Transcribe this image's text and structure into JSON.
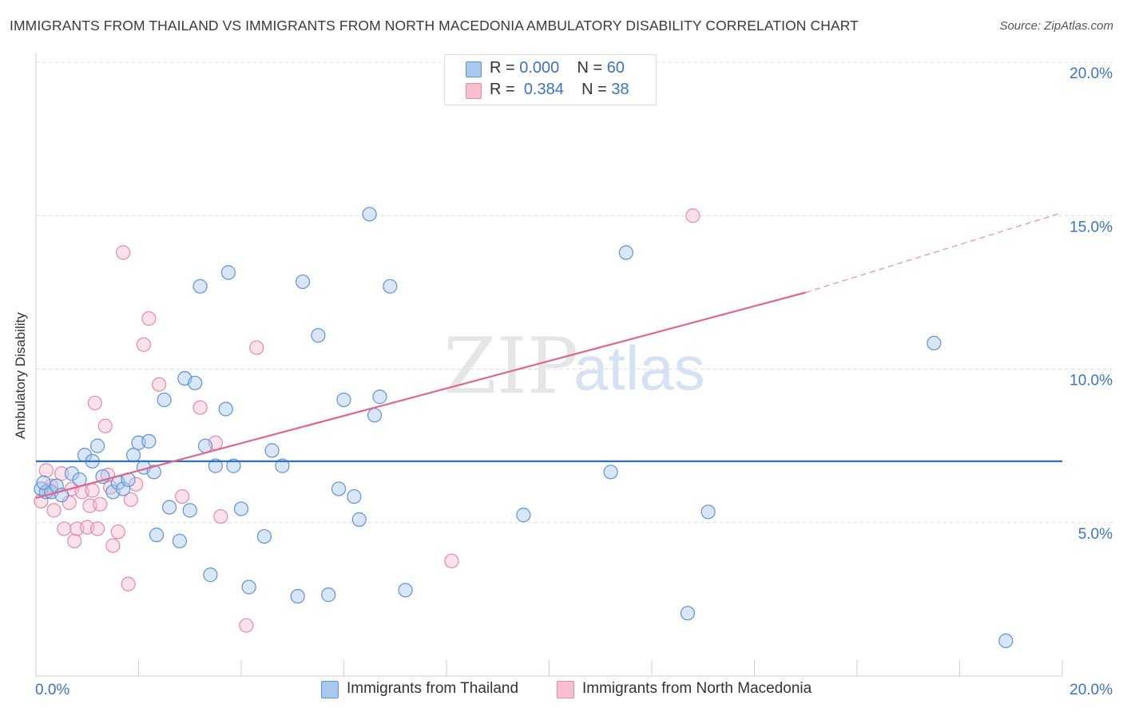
{
  "header": {
    "title": "IMMIGRANTS FROM THAILAND VS IMMIGRANTS FROM NORTH MACEDONIA AMBULATORY DISABILITY CORRELATION CHART",
    "source": "Source: ZipAtlas.com"
  },
  "watermark": {
    "zip": "ZIP",
    "atlas": "atlas"
  },
  "legend": {
    "rows": [
      {
        "r_label": "R = ",
        "r_value": "0.000",
        "n_label": "N = ",
        "n_value": "60"
      },
      {
        "r_label": "R = ",
        "r_value": "0.384",
        "n_label": "N = ",
        "n_value": "38"
      }
    ]
  },
  "bottom_legend": {
    "series1": "Immigrants from Thailand",
    "series2": "Immigrants from North Macedonia"
  },
  "colors": {
    "thailand_fill": "#a9c8f0",
    "thailand_stroke": "#5f93d6",
    "thailand_line": "#2f6fcc",
    "macedonia_fill": "#f7bfd0",
    "macedonia_stroke": "#e58aa8",
    "macedonia_line": "#e0668f",
    "tick_label": "#3b73c8"
  },
  "chart_data": {
    "type": "scatter",
    "title": "IMMIGRANTS FROM THAILAND VS IMMIGRANTS FROM NORTH MACEDONIA AMBULATORY DISABILITY CORRELATION CHART",
    "xlabel": "",
    "ylabel": "Ambulatory Disability",
    "xlim": [
      0,
      20
    ],
    "ylim": [
      0,
      20
    ],
    "x_tick_labels": [
      "0.0%",
      "20.0%"
    ],
    "y_tick_labels": [
      "5.0%",
      "10.0%",
      "15.0%",
      "20.0%"
    ],
    "y_ticks": [
      5,
      10,
      15,
      20
    ],
    "grid": true,
    "legend_position": "top-center",
    "series": [
      {
        "name": "Immigrants from Thailand",
        "r": 0.0,
        "n": 60,
        "trend": {
          "x": [
            0,
            20
          ],
          "y": [
            7.0,
            7.0
          ]
        },
        "points": [
          [
            0.1,
            6.1
          ],
          [
            0.2,
            6.0
          ],
          [
            0.3,
            6.0
          ],
          [
            0.4,
            6.2
          ],
          [
            0.5,
            5.9
          ],
          [
            0.7,
            6.6
          ],
          [
            0.85,
            6.4
          ],
          [
            0.95,
            7.2
          ],
          [
            1.1,
            7.0
          ],
          [
            1.2,
            7.5
          ],
          [
            1.3,
            6.5
          ],
          [
            1.5,
            6.0
          ],
          [
            1.6,
            6.3
          ],
          [
            1.7,
            6.1
          ],
          [
            1.8,
            6.4
          ],
          [
            1.9,
            7.2
          ],
          [
            2.0,
            7.6
          ],
          [
            2.1,
            6.8
          ],
          [
            2.2,
            7.65
          ],
          [
            2.3,
            6.65
          ],
          [
            2.35,
            4.6
          ],
          [
            2.5,
            9.0
          ],
          [
            2.6,
            5.5
          ],
          [
            2.8,
            4.4
          ],
          [
            2.9,
            9.7
          ],
          [
            3.0,
            5.4
          ],
          [
            3.1,
            9.55
          ],
          [
            3.2,
            12.7
          ],
          [
            3.3,
            7.5
          ],
          [
            3.4,
            3.3
          ],
          [
            3.5,
            6.85
          ],
          [
            3.7,
            8.7
          ],
          [
            3.75,
            13.15
          ],
          [
            3.85,
            6.85
          ],
          [
            4.0,
            5.45
          ],
          [
            4.15,
            2.9
          ],
          [
            4.45,
            4.55
          ],
          [
            4.6,
            7.35
          ],
          [
            4.8,
            6.85
          ],
          [
            5.1,
            2.6
          ],
          [
            5.2,
            12.85
          ],
          [
            5.5,
            11.1
          ],
          [
            5.7,
            2.65
          ],
          [
            5.9,
            6.1
          ],
          [
            6.0,
            9.0
          ],
          [
            6.2,
            5.85
          ],
          [
            6.3,
            5.1
          ],
          [
            6.5,
            15.05
          ],
          [
            6.6,
            8.5
          ],
          [
            6.7,
            9.1
          ],
          [
            6.9,
            12.7
          ],
          [
            7.2,
            2.8
          ],
          [
            9.5,
            5.25
          ],
          [
            11.2,
            6.65
          ],
          [
            11.5,
            13.8
          ],
          [
            12.7,
            2.05
          ],
          [
            13.1,
            5.35
          ],
          [
            17.5,
            10.85
          ],
          [
            18.9,
            1.15
          ],
          [
            0.15,
            6.3
          ]
        ]
      },
      {
        "name": "Immigrants from North Macedonia",
        "r": 0.384,
        "n": 38,
        "trend": {
          "x": [
            0,
            15
          ],
          "y": [
            5.8,
            12.5
          ],
          "dashed_to": [
            20,
            15.1
          ]
        },
        "points": [
          [
            0.1,
            5.7
          ],
          [
            0.2,
            6.7
          ],
          [
            0.3,
            6.2
          ],
          [
            0.35,
            5.4
          ],
          [
            0.5,
            6.6
          ],
          [
            0.55,
            4.8
          ],
          [
            0.65,
            5.65
          ],
          [
            0.7,
            6.1
          ],
          [
            0.75,
            4.4
          ],
          [
            0.8,
            4.8
          ],
          [
            0.9,
            6.0
          ],
          [
            1.0,
            4.85
          ],
          [
            1.05,
            5.55
          ],
          [
            1.1,
            6.05
          ],
          [
            1.15,
            8.9
          ],
          [
            1.2,
            4.8
          ],
          [
            1.25,
            5.6
          ],
          [
            1.35,
            8.15
          ],
          [
            1.4,
            6.55
          ],
          [
            1.45,
            6.15
          ],
          [
            1.5,
            4.25
          ],
          [
            1.6,
            4.7
          ],
          [
            1.7,
            13.8
          ],
          [
            1.8,
            3.0
          ],
          [
            1.85,
            5.75
          ],
          [
            1.95,
            6.25
          ],
          [
            2.1,
            10.8
          ],
          [
            2.2,
            11.65
          ],
          [
            2.4,
            9.5
          ],
          [
            2.85,
            5.85
          ],
          [
            3.2,
            8.75
          ],
          [
            3.5,
            7.6
          ],
          [
            3.6,
            5.2
          ],
          [
            4.3,
            10.7
          ],
          [
            4.1,
            1.65
          ],
          [
            8.1,
            3.75
          ],
          [
            12.8,
            15.0
          ],
          [
            0.25,
            6.05
          ]
        ]
      }
    ]
  }
}
